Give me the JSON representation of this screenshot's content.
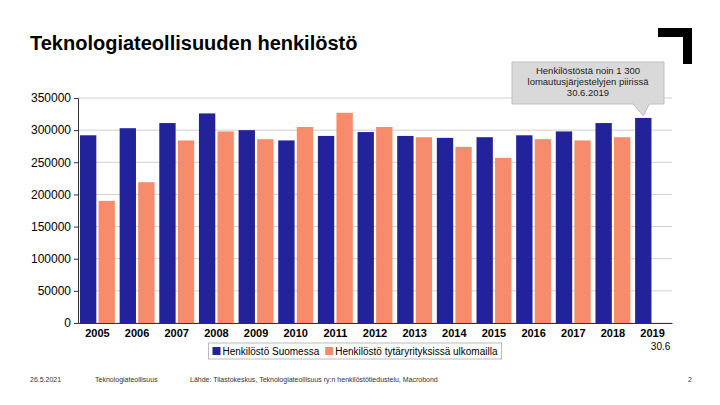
{
  "chart_data": {
    "type": "bar",
    "title": "Teknologiateollisuuden henkilöstö",
    "categories": [
      "2005",
      "2006",
      "2007",
      "2008",
      "2009",
      "2010",
      "2011",
      "2012",
      "2013",
      "2014",
      "2015",
      "2016",
      "2017",
      "2018",
      "2019"
    ],
    "series": [
      {
        "name": "Henkilöstö Suomessa",
        "color": "#22229a",
        "values": [
          292000,
          303000,
          311000,
          326000,
          300000,
          284000,
          291000,
          297000,
          291000,
          288000,
          289000,
          292000,
          298000,
          311000,
          319000
        ]
      },
      {
        "name": "Henkilöstö tytäryrityksissä ulkomailla",
        "color": "#f68c6c",
        "values": [
          190000,
          219000,
          284000,
          298000,
          286000,
          305000,
          327000,
          305000,
          289000,
          274000,
          257000,
          286000,
          284000,
          289000,
          null
        ]
      }
    ],
    "ylim": [
      0,
      350000
    ],
    "yticks": [
      0,
      50000,
      100000,
      150000,
      200000,
      250000,
      300000,
      350000
    ],
    "grid": true,
    "legend": "bottom",
    "annotations": [
      "Henkilöstöstä noin 1 300 lomautusjärjestelyjen piirissä 30.6.2019",
      "30.6"
    ],
    "footer": [
      "26.5.2021",
      "Teknologiateollisuus",
      "Lähde: Tilastokeskus, Teknologiateollisuus ry:n henkilöstötiedustelu, Macrobond",
      "2"
    ]
  }
}
